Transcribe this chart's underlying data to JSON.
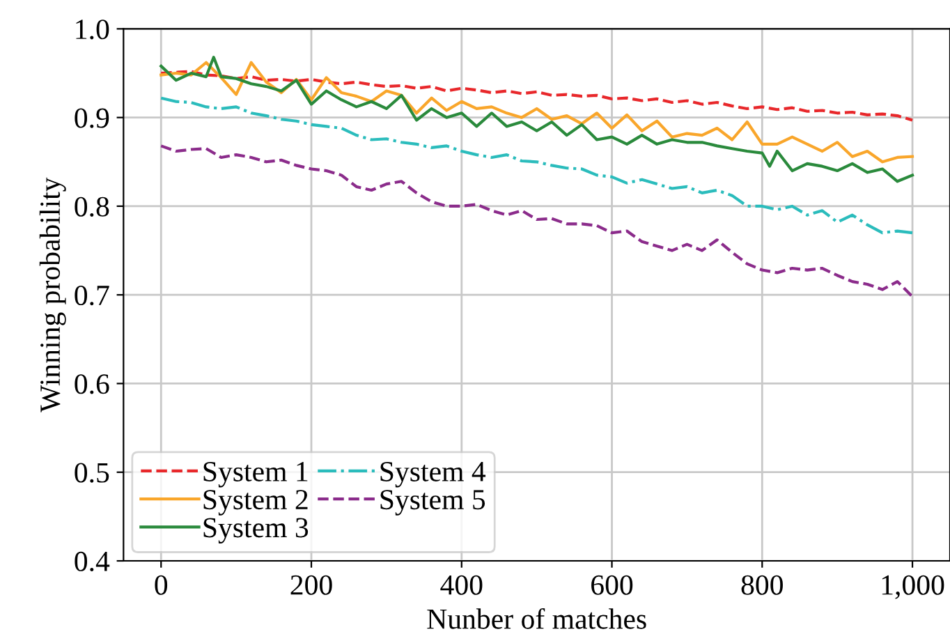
{
  "chart_data": {
    "type": "line",
    "xlabel": "Nunber of matches",
    "ylabel": "Winning probability",
    "xlim": [
      -50,
      1050
    ],
    "xticks": [
      0,
      200,
      400,
      600,
      800,
      {
        "value": 1000,
        "label": "1,000"
      }
    ],
    "ylim": [
      0.4,
      1.0
    ],
    "yticks": [
      0.4,
      0.5,
      0.6,
      0.7,
      0.8,
      0.9,
      {
        "value": 1.0,
        "label": "1.0"
      }
    ],
    "grid": true,
    "legend": "bottom left",
    "marker": "none",
    "series": [
      {
        "name": "System 1",
        "color": "#e8282b",
        "line_style": "dashed",
        "x": [
          0,
          20,
          40,
          60,
          80,
          100,
          120,
          140,
          160,
          180,
          200,
          220,
          240,
          260,
          280,
          300,
          320,
          340,
          360,
          380,
          400,
          420,
          440,
          460,
          480,
          500,
          520,
          540,
          560,
          580,
          600,
          620,
          640,
          660,
          680,
          700,
          720,
          740,
          760,
          780,
          800,
          820,
          840,
          860,
          880,
          900,
          920,
          940,
          960,
          980,
          1000
        ],
        "values": [
          0.95,
          0.951,
          0.952,
          0.948,
          0.947,
          0.944,
          0.946,
          0.942,
          0.943,
          0.941,
          0.943,
          0.94,
          0.938,
          0.94,
          0.937,
          0.935,
          0.936,
          0.933,
          0.935,
          0.93,
          0.933,
          0.931,
          0.928,
          0.93,
          0.927,
          0.929,
          0.925,
          0.926,
          0.924,
          0.925,
          0.921,
          0.922,
          0.919,
          0.921,
          0.917,
          0.919,
          0.915,
          0.917,
          0.913,
          0.91,
          0.912,
          0.909,
          0.911,
          0.907,
          0.908,
          0.905,
          0.906,
          0.903,
          0.904,
          0.902,
          0.897
        ]
      },
      {
        "name": "System 2",
        "color": "#f9a62b",
        "line_style": "solid",
        "x": [
          0,
          20,
          40,
          60,
          80,
          100,
          120,
          140,
          160,
          180,
          200,
          220,
          240,
          260,
          280,
          300,
          320,
          340,
          360,
          380,
          400,
          420,
          440,
          460,
          480,
          500,
          520,
          540,
          560,
          580,
          600,
          620,
          640,
          660,
          680,
          700,
          720,
          740,
          760,
          780,
          800,
          820,
          840,
          860,
          880,
          900,
          920,
          940,
          960,
          980,
          1000
        ],
        "values": [
          0.948,
          0.95,
          0.948,
          0.962,
          0.945,
          0.926,
          0.962,
          0.94,
          0.928,
          0.943,
          0.92,
          0.945,
          0.928,
          0.924,
          0.918,
          0.93,
          0.925,
          0.905,
          0.922,
          0.908,
          0.918,
          0.91,
          0.912,
          0.905,
          0.9,
          0.91,
          0.898,
          0.902,
          0.893,
          0.905,
          0.888,
          0.903,
          0.885,
          0.896,
          0.878,
          0.882,
          0.88,
          0.888,
          0.875,
          0.895,
          0.87,
          0.87,
          0.878,
          0.87,
          0.862,
          0.872,
          0.856,
          0.862,
          0.85,
          0.855,
          0.856
        ]
      },
      {
        "name": "System 3",
        "color": "#2a8a3c",
        "line_style": "solid",
        "x": [
          0,
          20,
          40,
          60,
          70,
          80,
          100,
          120,
          140,
          160,
          180,
          200,
          220,
          240,
          260,
          280,
          300,
          320,
          340,
          360,
          380,
          400,
          420,
          440,
          460,
          480,
          500,
          520,
          540,
          560,
          580,
          600,
          620,
          640,
          660,
          680,
          700,
          720,
          740,
          760,
          780,
          800,
          810,
          820,
          840,
          860,
          880,
          900,
          920,
          940,
          960,
          980,
          1000
        ],
        "values": [
          0.958,
          0.942,
          0.95,
          0.946,
          0.968,
          0.946,
          0.944,
          0.938,
          0.935,
          0.93,
          0.942,
          0.915,
          0.93,
          0.92,
          0.912,
          0.918,
          0.91,
          0.925,
          0.897,
          0.91,
          0.9,
          0.905,
          0.89,
          0.905,
          0.89,
          0.895,
          0.885,
          0.895,
          0.88,
          0.892,
          0.875,
          0.878,
          0.87,
          0.88,
          0.87,
          0.875,
          0.872,
          0.872,
          0.868,
          0.865,
          0.862,
          0.86,
          0.845,
          0.862,
          0.84,
          0.848,
          0.845,
          0.84,
          0.848,
          0.838,
          0.842,
          0.828,
          0.835
        ]
      },
      {
        "name": "System 4",
        "color": "#2bbcbc",
        "line_style": "dashdot",
        "x": [
          0,
          20,
          40,
          60,
          80,
          100,
          120,
          140,
          160,
          180,
          200,
          220,
          240,
          260,
          280,
          300,
          320,
          340,
          360,
          380,
          400,
          420,
          440,
          460,
          480,
          500,
          520,
          540,
          560,
          580,
          600,
          620,
          640,
          660,
          680,
          700,
          720,
          740,
          760,
          780,
          800,
          820,
          840,
          860,
          880,
          900,
          920,
          940,
          960,
          980,
          1000
        ],
        "values": [
          0.922,
          0.918,
          0.917,
          0.912,
          0.91,
          0.912,
          0.905,
          0.902,
          0.898,
          0.896,
          0.892,
          0.89,
          0.888,
          0.88,
          0.875,
          0.876,
          0.872,
          0.87,
          0.866,
          0.868,
          0.862,
          0.858,
          0.855,
          0.858,
          0.851,
          0.85,
          0.846,
          0.843,
          0.842,
          0.835,
          0.833,
          0.826,
          0.83,
          0.825,
          0.82,
          0.822,
          0.815,
          0.818,
          0.812,
          0.8,
          0.8,
          0.796,
          0.8,
          0.79,
          0.795,
          0.782,
          0.79,
          0.779,
          0.77,
          0.772,
          0.77
        ]
      },
      {
        "name": "System 5",
        "color": "#8b2c8b",
        "line_style": "dashed",
        "x": [
          0,
          20,
          40,
          60,
          80,
          100,
          120,
          140,
          160,
          180,
          200,
          220,
          240,
          260,
          280,
          300,
          320,
          340,
          360,
          380,
          400,
          420,
          440,
          460,
          480,
          500,
          520,
          540,
          560,
          580,
          600,
          620,
          640,
          660,
          680,
          700,
          720,
          740,
          760,
          780,
          800,
          820,
          840,
          860,
          880,
          900,
          920,
          940,
          960,
          980,
          1000
        ],
        "values": [
          0.868,
          0.862,
          0.864,
          0.865,
          0.855,
          0.858,
          0.855,
          0.85,
          0.852,
          0.846,
          0.842,
          0.84,
          0.835,
          0.822,
          0.818,
          0.825,
          0.828,
          0.815,
          0.805,
          0.8,
          0.8,
          0.802,
          0.795,
          0.79,
          0.795,
          0.785,
          0.786,
          0.78,
          0.78,
          0.778,
          0.77,
          0.772,
          0.76,
          0.755,
          0.75,
          0.757,
          0.75,
          0.762,
          0.748,
          0.735,
          0.728,
          0.725,
          0.73,
          0.728,
          0.73,
          0.722,
          0.715,
          0.712,
          0.706,
          0.715,
          0.698
        ]
      }
    ]
  }
}
